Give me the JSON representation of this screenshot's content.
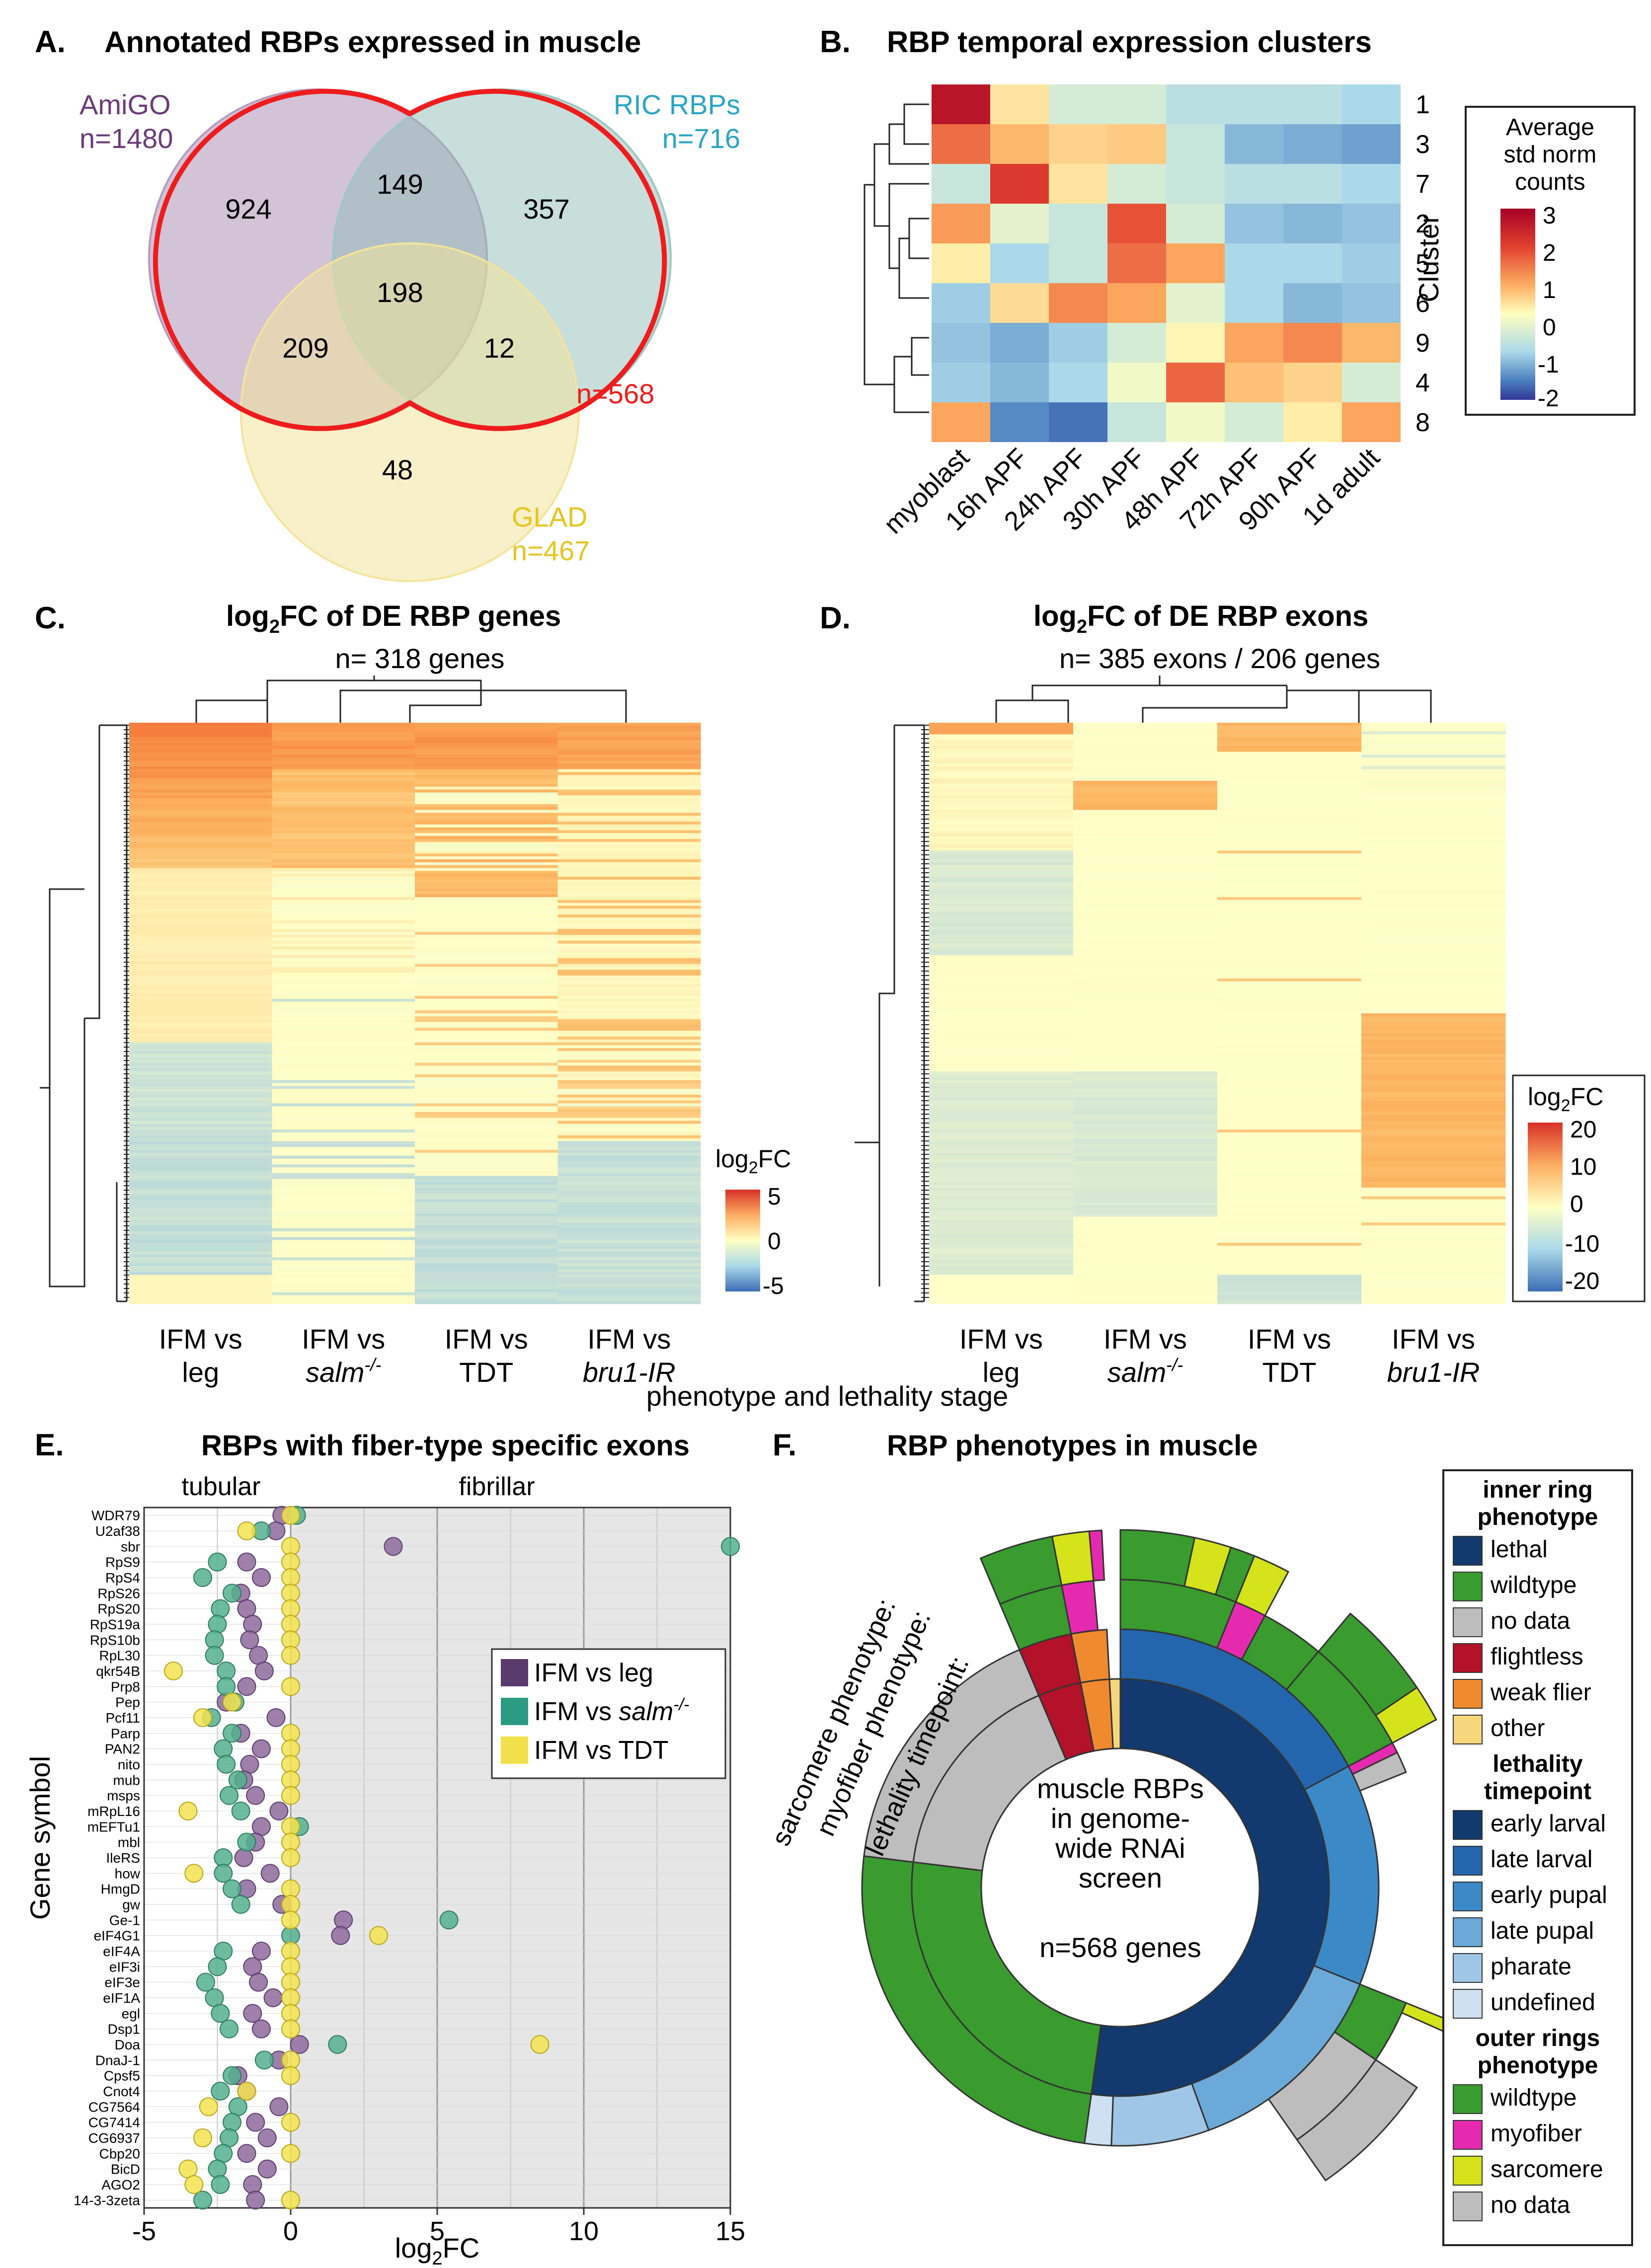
{
  "panels": {
    "A": {
      "letter": "A.",
      "title": "Annotated RBPs expressed in muscle"
    },
    "B": {
      "letter": "B.",
      "title": "RBP temporal expression clusters"
    },
    "C": {
      "letter": "C.",
      "title_main": "log",
      "title_sub": "2",
      "title_rest": "FC of DE RBP genes",
      "subtitle": "n= 318 genes"
    },
    "D": {
      "letter": "D.",
      "title_main": "log",
      "title_sub": "2",
      "title_rest": "FC of DE RBP exons",
      "subtitle": "n= 385 exons / 206 genes"
    },
    "E": {
      "letter": "E.",
      "title": "RBPs with fiber-type specific exons"
    },
    "F": {
      "letter": "F.",
      "title": "RBP phenotypes in muscle"
    }
  },
  "colors": {
    "amigo": "#7a4d86",
    "ric": "#2aa5c4",
    "glad": "#e6c51e",
    "union": "#ee1c1c",
    "leg": "#5b3a6e",
    "salm": "#2b9b84",
    "tdt": "#f1e04a"
  },
  "chart_data": [
    {
      "type": "venn",
      "panel": "A",
      "sets": [
        {
          "name": "AmiGO",
          "count_label": "n=1480"
        },
        {
          "name": "RIC RBPs",
          "count_label": "n=716"
        },
        {
          "name": "GLAD",
          "count_label": "n=467"
        }
      ],
      "regions": {
        "amigo_only": 924,
        "ric_only": 357,
        "glad_only": 48,
        "amigo_ric": 149,
        "amigo_glad": 209,
        "ric_glad": 12,
        "all": 198
      },
      "outline_label": "n=568"
    },
    {
      "type": "heatmap",
      "panel": "B",
      "columns": [
        "myoblast",
        "16h APF",
        "24h APF",
        "30h APF",
        "48h APF",
        "72h APF",
        "90h APF",
        "1d adult"
      ],
      "rows": [
        "1",
        "3",
        "7",
        "2",
        "5",
        "6",
        "9",
        "4",
        "8"
      ],
      "values": [
        [
          2.7,
          0.3,
          -0.3,
          -0.3,
          -0.5,
          -0.5,
          -0.5,
          -0.6
        ],
        [
          1.6,
          0.8,
          0.5,
          0.6,
          -0.4,
          -0.9,
          -1.0,
          -1.1
        ],
        [
          -0.4,
          2.2,
          0.3,
          -0.3,
          -0.4,
          -0.5,
          -0.5,
          -0.6
        ],
        [
          1.1,
          -0.2,
          -0.4,
          1.9,
          -0.3,
          -0.8,
          -0.9,
          -0.8
        ],
        [
          0.2,
          -0.6,
          -0.4,
          1.6,
          1.0,
          -0.6,
          -0.6,
          -0.7
        ],
        [
          -0.7,
          0.4,
          1.3,
          1.0,
          -0.2,
          -0.6,
          -0.9,
          -0.8
        ],
        [
          -0.8,
          -1.0,
          -0.7,
          -0.3,
          0.1,
          1.0,
          1.3,
          0.8
        ],
        [
          -0.7,
          -0.9,
          -0.6,
          -0.1,
          1.7,
          0.7,
          0.5,
          -0.3
        ],
        [
          1.0,
          -1.3,
          -1.5,
          -0.4,
          -0.1,
          -0.3,
          0.2,
          1.0
        ]
      ],
      "ylabel": "Cluster",
      "legend_title": [
        "Average",
        "std norm",
        "counts"
      ],
      "legend_ticks": [
        "3",
        "2",
        "1",
        "0",
        "-1",
        "-2"
      ],
      "range": [
        -2,
        3
      ]
    },
    {
      "type": "heatmap",
      "panel": "C",
      "columns": [
        [
          "IFM vs",
          "leg"
        ],
        [
          "IFM vs",
          "salm",
          "-/-"
        ],
        [
          "IFM vs",
          "TDT"
        ],
        [
          "IFM vs",
          "bru1-IR"
        ]
      ],
      "n_rows": 318,
      "legend_title": "log2FC",
      "legend_ticks": [
        "5",
        "0",
        "-5"
      ],
      "range": [
        -5,
        5
      ]
    },
    {
      "type": "heatmap",
      "panel": "D",
      "columns": [
        [
          "IFM vs",
          "leg"
        ],
        [
          "IFM vs",
          "salm",
          "-/-"
        ],
        [
          "IFM vs",
          "TDT"
        ],
        [
          "IFM vs",
          "bru1-IR"
        ]
      ],
      "n_rows": 385,
      "legend_title": "log2FC",
      "legend_ticks": [
        "20",
        "10",
        "0",
        "-10",
        "-20"
      ],
      "range": [
        -20,
        20
      ]
    },
    {
      "type": "scatter",
      "panel": "E",
      "xlabel": "log2FC",
      "ylabel": "Gene symbol",
      "xlim": [
        -5,
        15
      ],
      "x_ticks": [
        "-5",
        "0",
        "5",
        "10",
        "15"
      ],
      "region_labels": [
        "tubular",
        "fibrillar"
      ],
      "genes": [
        "WDR79",
        "U2af38",
        "sbr",
        "RpS9",
        "RpS4",
        "RpS26",
        "RpS20",
        "RpS19a",
        "RpS10b",
        "RpL30",
        "qkr54B",
        "Prp8",
        "Pep",
        "Pcf11",
        "Parp",
        "PAN2",
        "nito",
        "mub",
        "msps",
        "mRpL16",
        "mEFTu1",
        "mbl",
        "IleRS",
        "how",
        "HmgD",
        "gw",
        "Ge-1",
        "eIF4G1",
        "eIF4A",
        "eIF3i",
        "eIF3e",
        "eIF1A",
        "egl",
        "Dsp1",
        "Doa",
        "DnaJ-1",
        "Cpsf5",
        "Cnot4",
        "CG7564",
        "CG7414",
        "CG6937",
        "Cbp20",
        "BicD",
        "AGO2",
        "14-3-3zeta"
      ],
      "series": [
        {
          "name": "IFM vs leg",
          "values": [
            [
              -0.3
            ],
            [
              -0.5
            ],
            [
              3.5
            ],
            [
              -1.5
            ],
            [
              -1.0
            ],
            [
              -1.7
            ],
            [
              -1.5
            ],
            [
              -1.3
            ],
            [
              -1.4
            ],
            [
              -1.1
            ],
            [
              -0.9
            ],
            [
              -1.5
            ],
            [
              -2.2
            ],
            [
              -0.5
            ],
            [
              -1.7
            ],
            [
              -1.0
            ],
            [
              -1.4
            ],
            [
              -1.6
            ],
            [
              -1.2
            ],
            [
              -0.4
            ],
            [
              -1.0
            ],
            [
              -1.2
            ],
            [
              -1.6
            ],
            [
              -0.7
            ],
            [
              -1.5
            ],
            [
              -0.3
            ],
            [
              1.8
            ],
            [
              1.7
            ],
            [
              -1.0
            ],
            [
              -1.3
            ],
            [
              -1.1
            ],
            [
              -0.6
            ],
            [
              -1.3
            ],
            [
              -1.0
            ],
            [
              0.3
            ],
            [
              -0.4
            ],
            [
              -1.8
            ],
            [
              -1.5
            ],
            [
              -0.4
            ],
            [
              -1.2
            ],
            [
              -0.8
            ],
            [
              -1.5
            ],
            [
              -0.8
            ],
            [
              -1.3
            ],
            [
              -1.2
            ]
          ]
        },
        {
          "name": "IFM vs salm-/-",
          "values": [
            [
              0.2
            ],
            [
              -1.0
            ],
            [
              15.0
            ],
            [
              -2.5
            ],
            [
              -3.0
            ],
            [
              -2.0
            ],
            [
              -2.4
            ],
            [
              -2.5
            ],
            [
              -2.6
            ],
            [
              -2.6
            ],
            [
              -2.2
            ],
            [
              -2.2
            ],
            [
              -1.9
            ],
            [
              -2.7
            ],
            [
              -2.0
            ],
            [
              -2.3
            ],
            [
              -2.2
            ],
            [
              -1.8
            ],
            [
              -2.1
            ],
            [
              -1.7
            ],
            [
              0.3
            ],
            [
              -1.5
            ],
            [
              -2.3
            ],
            [
              -2.3
            ],
            [
              -2.0
            ],
            [
              -1.7
            ],
            [
              5.4
            ],
            [
              0.0
            ],
            [
              -2.3
            ],
            [
              -2.5
            ],
            [
              -2.9
            ],
            [
              -2.6
            ],
            [
              -2.4
            ],
            [
              -2.1
            ],
            [
              1.6
            ],
            [
              -0.9
            ],
            [
              -2.0
            ],
            [
              -2.4
            ],
            [
              -1.8
            ],
            [
              -2.0
            ],
            [
              -2.1
            ],
            [
              -2.3
            ],
            [
              -2.5
            ],
            [
              -2.4
            ],
            [
              -3.0
            ]
          ]
        },
        {
          "name": "IFM vs TDT",
          "values": [
            [
              0.0
            ],
            [
              -1.5
            ],
            [
              0.0
            ],
            [
              0.0
            ],
            [
              0.0
            ],
            [
              0.0
            ],
            [
              0.0
            ],
            [
              0.0
            ],
            [
              0.0
            ],
            [
              0.0
            ],
            [
              -4.0
            ],
            [
              0.0
            ],
            [
              -2.0
            ],
            [
              -3.0
            ],
            [
              0.0
            ],
            [
              0.0
            ],
            [
              0.0
            ],
            [
              0.0
            ],
            [
              0.0
            ],
            [
              -3.5
            ],
            [
              0.0
            ],
            [
              0.0
            ],
            [
              0.0
            ],
            [
              -3.3
            ],
            [
              0.0
            ],
            [
              0.0
            ],
            [
              0.0
            ],
            [
              3.0
            ],
            [
              0.0
            ],
            [
              0.0
            ],
            [
              0.0
            ],
            [
              0.0
            ],
            [
              0.0
            ],
            [
              0.0
            ],
            [
              8.5
            ],
            [
              0.0
            ],
            [
              0.0
            ],
            [
              -1.5
            ],
            [
              -2.8
            ],
            [
              0.0
            ],
            [
              -3.0
            ],
            [
              0.0
            ],
            [
              -3.5
            ],
            [
              -3.3
            ],
            [
              0.0
            ]
          ]
        }
      ]
    },
    {
      "type": "sunburst",
      "panel": "F",
      "center_lines": [
        "muscle RBPs",
        "in genome-",
        "wide RNAi",
        "screen",
        "",
        "n=568 genes"
      ],
      "ring_labels": [
        "lethality timepoint:",
        "myofiber phenotype:",
        "sarcomere phenotype:"
      ],
      "inner_ring": [
        {
          "label": "lethal",
          "fraction": 0.52
        },
        {
          "label": "wildtype",
          "fraction": 0.25
        },
        {
          "label": "no data",
          "fraction": 0.17
        },
        {
          "label": "flightless",
          "fraction": 0.03
        },
        {
          "label": "weak flier",
          "fraction": 0.02
        },
        {
          "label": "other",
          "fraction": 0.01
        }
      ],
      "lethality_ring": [
        {
          "label": "early larval",
          "fraction": 0.2
        },
        {
          "label": "late larval",
          "fraction": 0.11
        },
        {
          "label": "early pupal",
          "fraction": 0.1
        },
        {
          "label": "late pupal",
          "fraction": 0.08
        },
        {
          "label": "pharate",
          "fraction": 0.02
        },
        {
          "label": "undefined",
          "fraction": 0.01
        }
      ],
      "legend": {
        "inner_title": [
          "inner ring",
          "phenotype"
        ],
        "inner": [
          {
            "label": "lethal",
            "color": "#123a6e"
          },
          {
            "label": "wildtype",
            "color": "#3a9b2e"
          },
          {
            "label": "no data",
            "color": "#bdbdbd"
          },
          {
            "label": "flightless",
            "color": "#b3122a"
          },
          {
            "label": "weak flier",
            "color": "#f08a2e"
          },
          {
            "label": "other",
            "color": "#f7d77c"
          }
        ],
        "leth_title": [
          "lethality",
          "timepoint"
        ],
        "leth": [
          {
            "label": "early larval",
            "color": "#123a6e"
          },
          {
            "label": "late larval",
            "color": "#2466ad"
          },
          {
            "label": "early pupal",
            "color": "#3c89c8"
          },
          {
            "label": "late pupal",
            "color": "#6ba9d8"
          },
          {
            "label": "pharate",
            "color": "#9fc6e6"
          },
          {
            "label": "undefined",
            "color": "#cfe0f2"
          }
        ],
        "outer_title": [
          "outer rings",
          "phenotype"
        ],
        "outer": [
          {
            "label": "wildtype",
            "color": "#3a9b2e"
          },
          {
            "label": "myofiber",
            "color": "#e62ab0"
          },
          {
            "label": "sarcomere",
            "color": "#d4e31a"
          },
          {
            "label": "no data",
            "color": "#bdbdbd"
          }
        ]
      }
    }
  ],
  "shared": {
    "xlabel_cd": "phenotype and lethality stage"
  }
}
